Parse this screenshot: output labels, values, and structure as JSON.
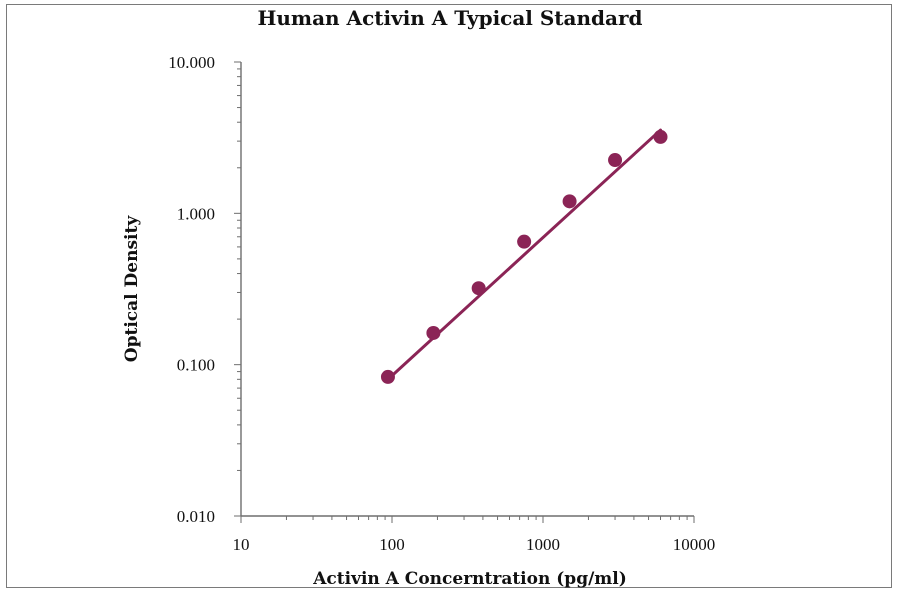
{
  "chart_data": {
    "type": "scatter",
    "title": "Human Activin A Typical Standard",
    "xlabel": "Activin A Concerntration (pg/ml)",
    "ylabel": "Optical Density",
    "x_scale": "log",
    "y_scale": "log",
    "xlim": [
      10,
      10000
    ],
    "ylim": [
      0.01,
      10
    ],
    "x_tick_labels": [
      "10",
      "100",
      "1000",
      "10000"
    ],
    "y_tick_labels": [
      "0.010",
      "0.100",
      "1.000",
      "10.000"
    ],
    "grid": false,
    "legend": "none",
    "series": [
      {
        "x": [
          94,
          188,
          375,
          750,
          1500,
          3000,
          6000
        ],
        "y": [
          0.083,
          0.162,
          0.32,
          0.65,
          1.2,
          2.25,
          3.2
        ],
        "color": "#8b2456"
      }
    ],
    "fit_line": {
      "x": [
        94,
        6000
      ],
      "y": [
        0.08,
        3.55
      ],
      "color": "#8b2456"
    }
  }
}
